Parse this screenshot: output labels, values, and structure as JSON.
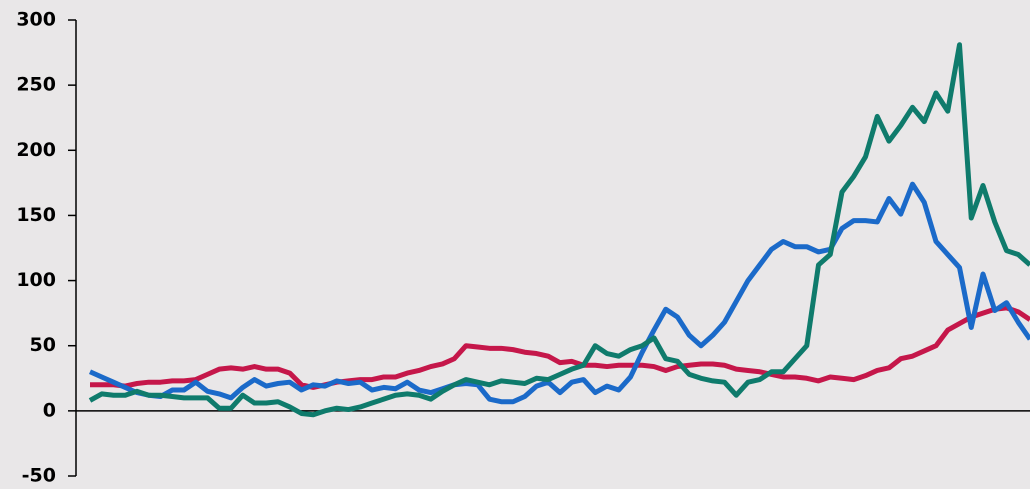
{
  "chart_data": {
    "type": "line",
    "ylim": [
      -50,
      300
    ],
    "yticks": [
      -50,
      0,
      50,
      100,
      150,
      200,
      250,
      300
    ],
    "zero_line": true,
    "series": [
      {
        "color": "#c5174a",
        "values": [
          20,
          20,
          20,
          19,
          21,
          22,
          22,
          23,
          23,
          24,
          28,
          32,
          33,
          32,
          34,
          32,
          32,
          29,
          20,
          18,
          20,
          22,
          23,
          24,
          24,
          26,
          26,
          29,
          31,
          34,
          36,
          40,
          50,
          49,
          48,
          48,
          47,
          45,
          44,
          42,
          37,
          38,
          35,
          35,
          34,
          35,
          35,
          35,
          34,
          31,
          34,
          35,
          36,
          36,
          35,
          32,
          31,
          30,
          28,
          26,
          26,
          25,
          23,
          26,
          25,
          24,
          27,
          31,
          33,
          40,
          42,
          46,
          50,
          62,
          67,
          72,
          75,
          78,
          79,
          76,
          70
        ]
      },
      {
        "color": "#1b6ac9",
        "values": [
          30,
          26,
          22,
          18,
          14,
          12,
          11,
          16,
          16,
          22,
          15,
          13,
          10,
          18,
          24,
          19,
          21,
          22,
          16,
          20,
          19,
          23,
          21,
          22,
          16,
          18,
          17,
          22,
          16,
          14,
          17,
          20,
          21,
          20,
          9,
          7,
          7,
          11,
          19,
          22,
          14,
          22,
          24,
          14,
          19,
          16,
          26,
          45,
          62,
          78,
          72,
          58,
          50,
          58,
          68,
          84,
          100,
          112,
          124,
          130,
          126,
          126,
          122,
          124,
          140,
          146,
          146,
          145,
          163,
          151,
          174,
          160,
          130,
          120,
          110,
          64,
          105,
          77,
          83,
          68,
          55
        ]
      },
      {
        "color": "#0f7b6c",
        "values": [
          8,
          13,
          12,
          12,
          15,
          12,
          12,
          11,
          10,
          10,
          10,
          2,
          2,
          12,
          6,
          6,
          7,
          3,
          -2,
          -3,
          0,
          2,
          1,
          3,
          6,
          9,
          12,
          13,
          12,
          9,
          15,
          20,
          24,
          22,
          20,
          23,
          22,
          21,
          25,
          24,
          28,
          32,
          35,
          50,
          44,
          42,
          47,
          50,
          56,
          40,
          38,
          28,
          25,
          23,
          22,
          12,
          22,
          24,
          30,
          30,
          40,
          50,
          112,
          120,
          168,
          180,
          195,
          226,
          207,
          219,
          233,
          222,
          244,
          230,
          281,
          148,
          173,
          145,
          123,
          120,
          112
        ]
      }
    ]
  }
}
